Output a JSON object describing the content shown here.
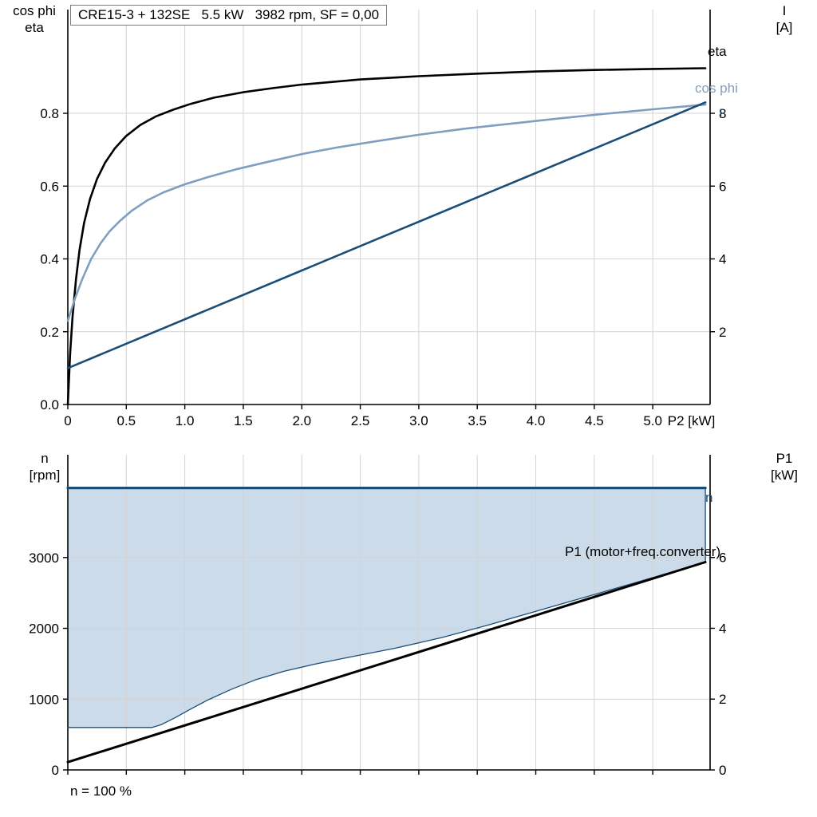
{
  "palette": {
    "axis": "#000000",
    "grid": "#d3d3d3",
    "background": "#ffffff",
    "brand_blue": "#1a4e78",
    "light_blue": "#7f9fc1",
    "area_fill": "#ccdbe9"
  },
  "chart_data": [
    {
      "type": "line",
      "title": "CRE15-3 + 132SE   5.5 kW   3982 rpm, SF = 0,00",
      "x_axis": {
        "label": "P2 [kW]",
        "label_v": 5.33,
        "range": [
          0,
          5.49
        ],
        "show_labels": true,
        "ticks": [
          {
            "v": 0,
            "label": "0"
          },
          {
            "v": 0.5,
            "label": "0.5"
          },
          {
            "v": 1,
            "label": "1.0"
          },
          {
            "v": 1.5,
            "label": "1.5"
          },
          {
            "v": 2,
            "label": "2.0"
          },
          {
            "v": 2.5,
            "label": "2.5"
          },
          {
            "v": 3,
            "label": "3.0"
          },
          {
            "v": 3.5,
            "label": "3.5"
          },
          {
            "v": 4,
            "label": "4.0"
          },
          {
            "v": 4.5,
            "label": "4.5"
          },
          {
            "v": 5,
            "label": "5.0"
          }
        ]
      },
      "left_axis": {
        "title_lines": [
          "cos phi",
          "eta"
        ],
        "range": [
          0,
          1.085
        ],
        "ticks": [
          {
            "v": 0,
            "label": "0.0"
          },
          {
            "v": 0.2,
            "label": "0.2"
          },
          {
            "v": 0.4,
            "label": "0.4"
          },
          {
            "v": 0.6,
            "label": "0.6"
          },
          {
            "v": 0.8,
            "label": "0.8"
          }
        ]
      },
      "right_axis": {
        "title_lines": [
          "I",
          "[A]"
        ],
        "range": [
          0,
          10.85
        ],
        "ticks": [
          {
            "v": 2,
            "label": "2"
          },
          {
            "v": 4,
            "label": "4"
          },
          {
            "v": 6,
            "label": "6"
          },
          {
            "v": 8,
            "label": "8"
          }
        ]
      },
      "series": [
        {
          "id": "eta",
          "name": "eta",
          "axis": "left",
          "color": "#000000",
          "width": 2.6,
          "points": [
            [
              0,
              0
            ],
            [
              0.02,
              0.14
            ],
            [
              0.04,
              0.24
            ],
            [
              0.07,
              0.345
            ],
            [
              0.1,
              0.425
            ],
            [
              0.14,
              0.5
            ],
            [
              0.19,
              0.565
            ],
            [
              0.25,
              0.62
            ],
            [
              0.32,
              0.665
            ],
            [
              0.4,
              0.703
            ],
            [
              0.5,
              0.738
            ],
            [
              0.62,
              0.768
            ],
            [
              0.75,
              0.791
            ],
            [
              0.9,
              0.81
            ],
            [
              1.05,
              0.826
            ],
            [
              1.25,
              0.843
            ],
            [
              1.5,
              0.858
            ],
            [
              1.75,
              0.869
            ],
            [
              2,
              0.879
            ],
            [
              2.5,
              0.893
            ],
            [
              3,
              0.902
            ],
            [
              3.5,
              0.909
            ],
            [
              4,
              0.915
            ],
            [
              4.5,
              0.919
            ],
            [
              5,
              0.922
            ],
            [
              5.45,
              0.924
            ]
          ]
        },
        {
          "id": "cos-phi",
          "name": "cos phi",
          "axis": "left",
          "color": "#7f9fc1",
          "width": 2.6,
          "points": [
            [
              0,
              0.23
            ],
            [
              0.06,
              0.29
            ],
            [
              0.12,
              0.342
            ],
            [
              0.2,
              0.4
            ],
            [
              0.28,
              0.443
            ],
            [
              0.36,
              0.477
            ],
            [
              0.45,
              0.506
            ],
            [
              0.55,
              0.533
            ],
            [
              0.68,
              0.561
            ],
            [
              0.82,
              0.583
            ],
            [
              1,
              0.605
            ],
            [
              1.2,
              0.625
            ],
            [
              1.45,
              0.647
            ],
            [
              1.7,
              0.666
            ],
            [
              2,
              0.688
            ],
            [
              2.3,
              0.706
            ],
            [
              2.65,
              0.724
            ],
            [
              3,
              0.741
            ],
            [
              3.4,
              0.758
            ],
            [
              3.8,
              0.772
            ],
            [
              4.2,
              0.786
            ],
            [
              4.6,
              0.799
            ],
            [
              5,
              0.811
            ],
            [
              5.45,
              0.824
            ]
          ]
        },
        {
          "id": "current",
          "name": "I",
          "axis": "right",
          "color": "#1a4e78",
          "width": 2.6,
          "points": [
            [
              0,
              1.0
            ],
            [
              2.7,
              4.62
            ],
            [
              5.45,
              8.3
            ]
          ]
        }
      ]
    },
    {
      "type": "line",
      "x_axis": {
        "range": [
          0,
          5.49
        ],
        "show_labels": false,
        "ticks": [
          {
            "v": 0
          },
          {
            "v": 0.5
          },
          {
            "v": 1
          },
          {
            "v": 1.5
          },
          {
            "v": 2
          },
          {
            "v": 2.5
          },
          {
            "v": 3
          },
          {
            "v": 3.5
          },
          {
            "v": 4
          },
          {
            "v": 4.5
          },
          {
            "v": 5
          }
        ]
      },
      "left_axis": {
        "title_lines": [
          "n",
          "[rpm]"
        ],
        "range": [
          0,
          4451
        ],
        "ticks": [
          {
            "v": 0,
            "label": "0"
          },
          {
            "v": 1000,
            "label": "1000"
          },
          {
            "v": 2000,
            "label": "2000"
          },
          {
            "v": 3000,
            "label": "3000"
          }
        ]
      },
      "right_axis": {
        "title_lines": [
          "P1",
          "[kW]"
        ],
        "range": [
          0,
          8.9
        ],
        "ticks": [
          {
            "v": 0,
            "label": "0"
          },
          {
            "v": 2,
            "label": "2"
          },
          {
            "v": 4,
            "label": "4"
          },
          {
            "v": 6,
            "label": "6"
          }
        ]
      },
      "area": {
        "fill": "#ccdbe9",
        "upper_value": 3982,
        "lower_points": [
          [
            0,
            600
          ],
          [
            0.72,
            600
          ],
          [
            0.8,
            640
          ],
          [
            0.92,
            740
          ],
          [
            1.05,
            860
          ],
          [
            1.2,
            990
          ],
          [
            1.4,
            1140
          ],
          [
            1.6,
            1270
          ],
          [
            1.85,
            1395
          ],
          [
            2.1,
            1490
          ],
          [
            2.4,
            1590
          ],
          [
            2.8,
            1720
          ],
          [
            3.2,
            1870
          ],
          [
            3.6,
            2050
          ],
          [
            4,
            2240
          ],
          [
            4.4,
            2430
          ],
          [
            4.8,
            2620
          ],
          [
            5.1,
            2765
          ],
          [
            5.3,
            2860
          ],
          [
            5.45,
            2930
          ]
        ]
      },
      "series": [
        {
          "id": "speed",
          "name": "n",
          "axis": "left",
          "color": "#1a4e78",
          "width": 3.2,
          "points": [
            [
              0,
              3982
            ],
            [
              5.45,
              3982
            ]
          ]
        },
        {
          "id": "min-speed-boundary",
          "axis": "left",
          "color": "#1a4e78",
          "width": 1.3,
          "points": [
            [
              0,
              600
            ],
            [
              0.72,
              600
            ],
            [
              0.8,
              640
            ],
            [
              0.92,
              740
            ],
            [
              1.05,
              860
            ],
            [
              1.2,
              990
            ],
            [
              1.4,
              1140
            ],
            [
              1.6,
              1270
            ],
            [
              1.85,
              1395
            ],
            [
              2.1,
              1490
            ],
            [
              2.4,
              1590
            ],
            [
              2.8,
              1720
            ],
            [
              3.2,
              1870
            ],
            [
              3.6,
              2050
            ],
            [
              4,
              2240
            ],
            [
              4.4,
              2430
            ],
            [
              4.8,
              2620
            ],
            [
              5.1,
              2765
            ],
            [
              5.3,
              2860
            ],
            [
              5.45,
              2930
            ]
          ]
        },
        {
          "id": "area-right-edge",
          "axis": "left",
          "color": "#1a4e78",
          "width": 1.3,
          "points": [
            [
              5.45,
              3982
            ],
            [
              5.45,
              2930
            ]
          ]
        },
        {
          "id": "p1",
          "name": "P1 (motor+freq.converter)",
          "axis": "right",
          "color": "#000000",
          "width": 3,
          "points": [
            [
              0,
              0.22
            ],
            [
              5.45,
              5.87
            ]
          ]
        }
      ],
      "footnote": "n = 100 %"
    }
  ]
}
